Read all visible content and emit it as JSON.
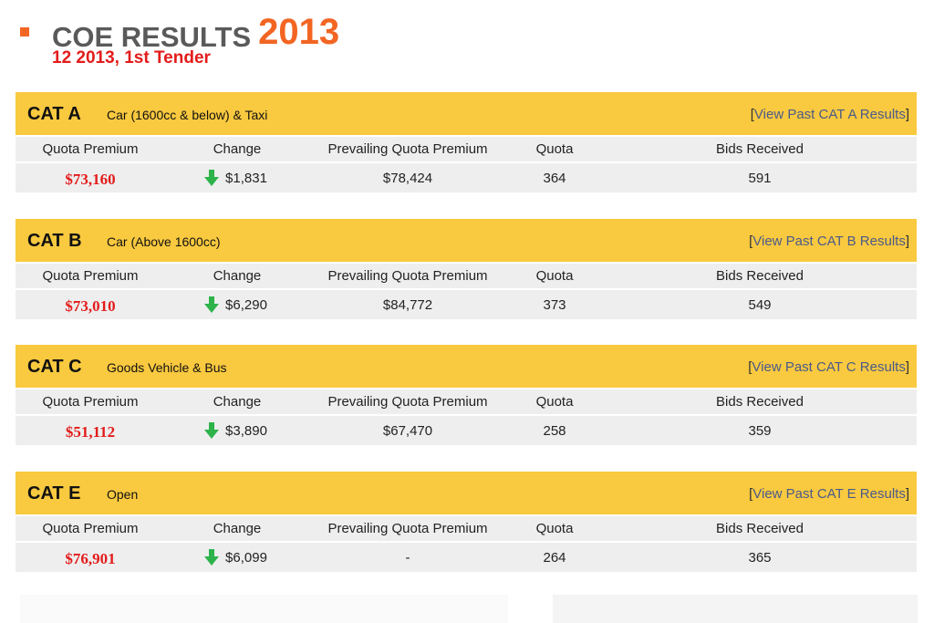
{
  "header": {
    "title": "COE RESULTS",
    "year": "2013",
    "subtitle": "12 2013, 1st Tender"
  },
  "bracket_open": "[",
  "bracket_close": "]",
  "columns": [
    "Quota Premium",
    "Change",
    "Prevailing Quota Premium",
    "Quota",
    "Bids Received"
  ],
  "categories": [
    {
      "code": "CAT A",
      "description": "Car (1600cc & below) & Taxi",
      "link": "View Past CAT A Results",
      "values": [
        "$73,160",
        "$1,831",
        "$78,424",
        "364",
        "591"
      ]
    },
    {
      "code": "CAT B",
      "description": "Car (Above 1600cc)",
      "link": "View Past CAT B Results",
      "values": [
        "$73,010",
        "$6,290",
        "$84,772",
        "373",
        "549"
      ]
    },
    {
      "code": "CAT C",
      "description": "Goods Vehicle & Bus",
      "link": "View Past CAT C Results",
      "values": [
        "$51,112",
        "$3,890",
        "$67,470",
        "258",
        "359"
      ]
    },
    {
      "code": "CAT E",
      "description": "Open",
      "link": "View Past CAT E Results",
      "values": [
        "$76,901",
        "$6,099",
        "-",
        "264",
        "365"
      ]
    }
  ]
}
